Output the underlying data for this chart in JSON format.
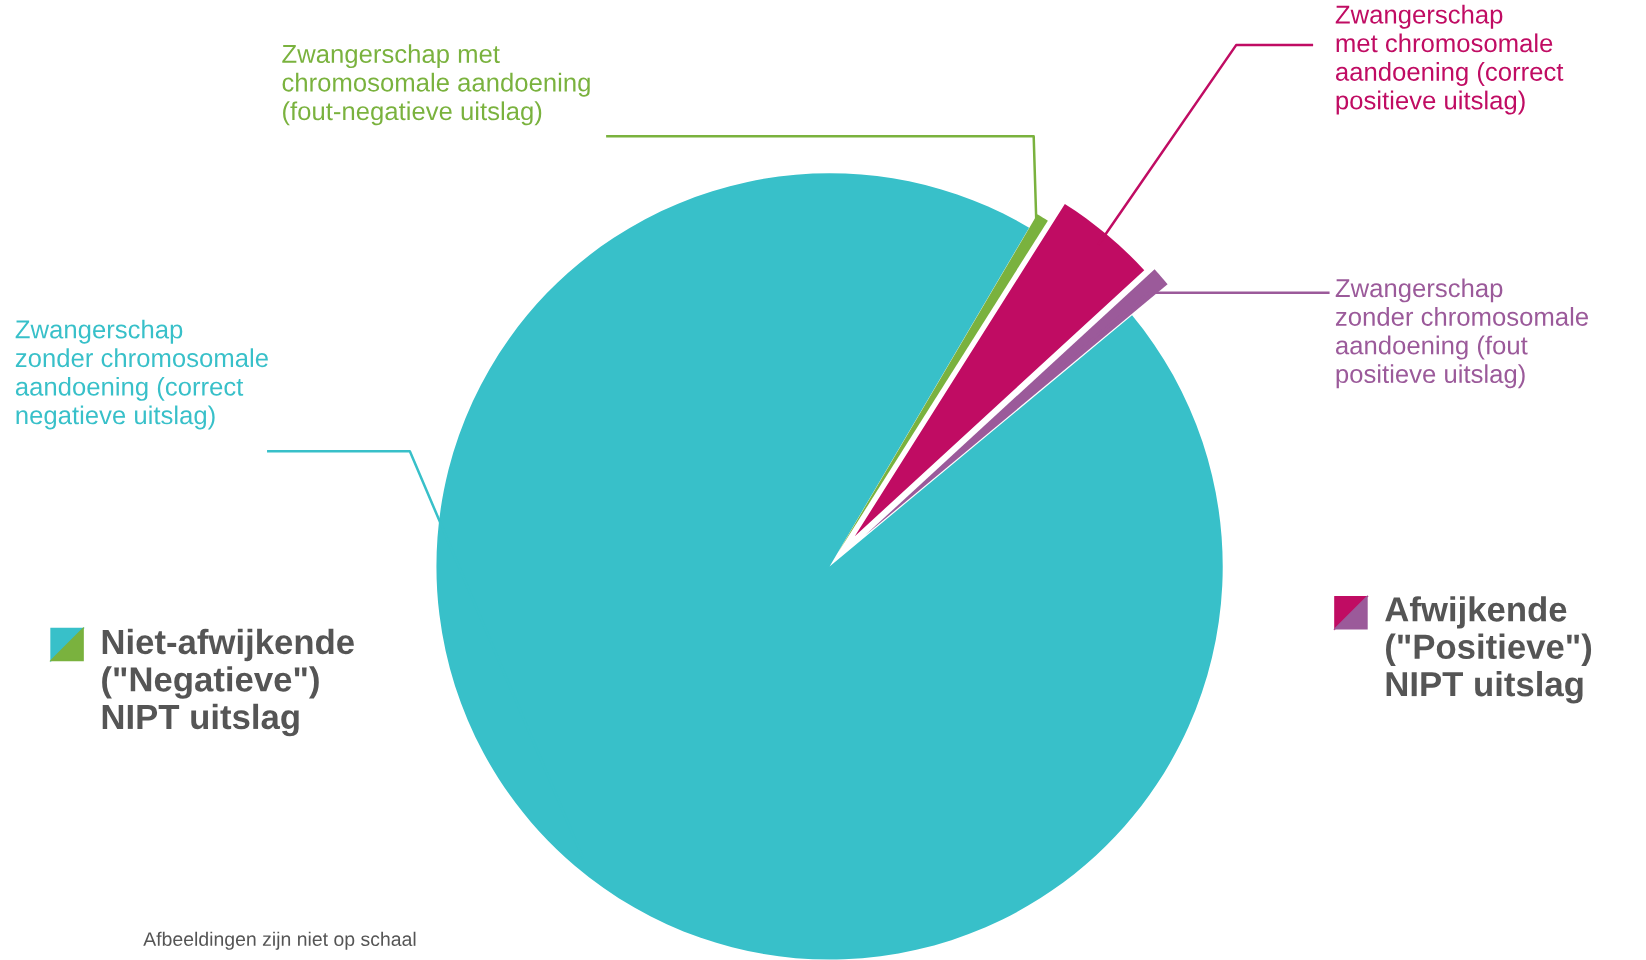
{
  "chart_data": {
    "type": "pie",
    "categories": [
      "Zwangerschap\nzonder chromosomale\naandoening (correct\nnegatieve uitslag)",
      "Zwangerschap met\nchromosomale aandoening\n(fout-negatieve uitslag)",
      "Zwangerschap\nmet chromosomale\naandoening (correct\npositieve uitslag)",
      "Zwangerschap\nzonder chromosomale\naandoening (fout\npositieve uitslag)"
    ],
    "values": [
      94.5,
      0.5,
      4.2,
      0.8
    ],
    "colors": [
      "#38c0c9",
      "#7ab23e",
      "#c00c63",
      "#9b5a9a"
    ],
    "annotations": [
      "Niet-afwijkende\n(\"Negatieve\")\nNIPT uitslag",
      "Afwijkende\n(\"Positieve\")\nNIPT uitslag",
      "Afbeeldingen zijn niet op schaal"
    ]
  }
}
